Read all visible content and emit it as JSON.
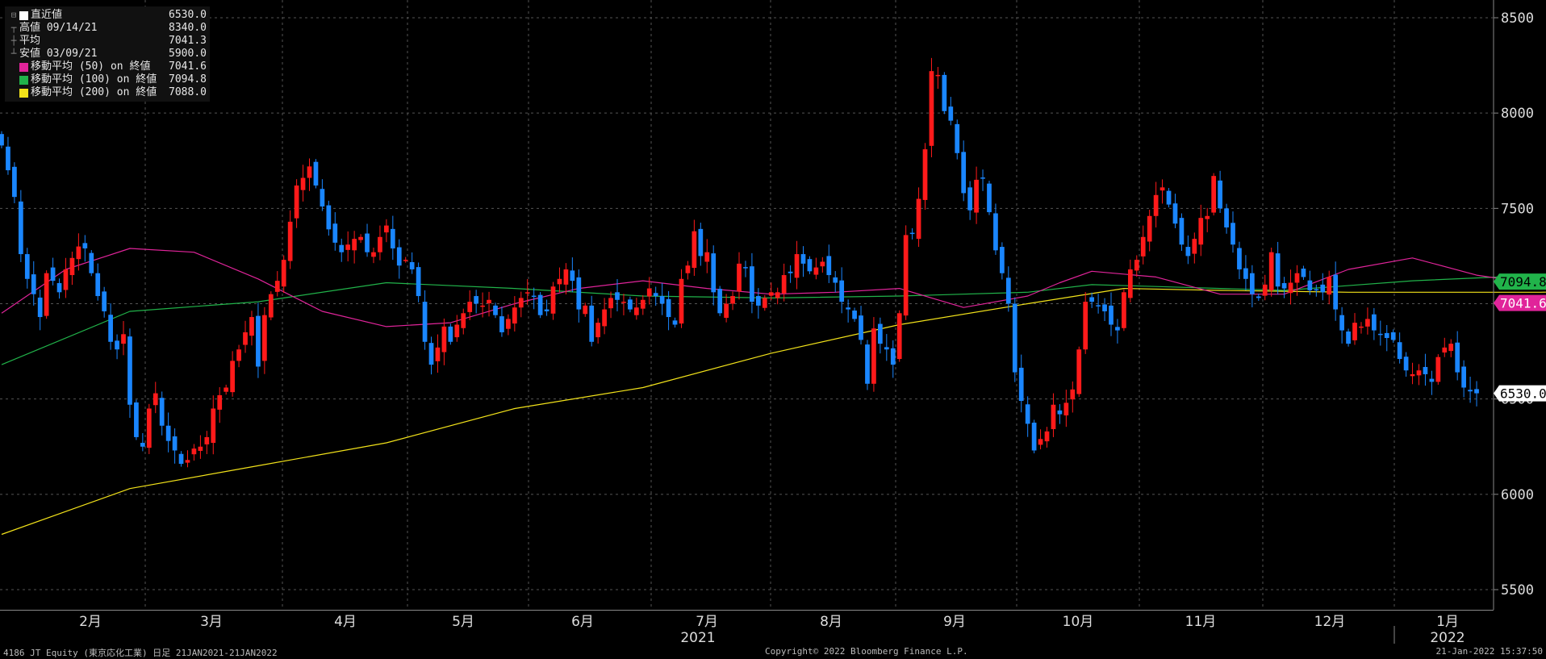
{
  "legend": {
    "items": [
      {
        "label": "直近値",
        "value": "6530.0",
        "swatch": "#ffffff",
        "glyph": "⊟"
      },
      {
        "label": "高値 09/14/21",
        "value": "8340.0",
        "swatch": "",
        "glyph": "┬"
      },
      {
        "label": "平均",
        "value": "7041.3",
        "swatch": "",
        "glyph": "┼"
      },
      {
        "label": "安値 03/09/21",
        "value": "5900.0",
        "swatch": "",
        "glyph": "┴"
      },
      {
        "label": "移動平均 (50) on 終値",
        "value": "7041.6",
        "swatch": "#e0249a",
        "glyph": ""
      },
      {
        "label": "移動平均 (100) on 終値",
        "value": "7094.8",
        "swatch": "#21b34a",
        "glyph": ""
      },
      {
        "label": "移動平均 (200) on 終値",
        "value": "7088.0",
        "swatch": "#f2e21a",
        "glyph": ""
      }
    ]
  },
  "footer": {
    "left": "4186 JT Equity (東京応化工業)  日足 21JAN2021-21JAN2022",
    "center": "Copyright© 2022 Bloomberg Finance L.P.",
    "right": "21-Jan-2022 15:37:50"
  },
  "chart_data": {
    "type": "candlestick",
    "ylim": [
      5400,
      8600
    ],
    "y_ticks": [
      "5500",
      "6000",
      "6500",
      "7000",
      "7500",
      "8000",
      "8500"
    ],
    "x_months": [
      "2月",
      "3月",
      "4月",
      "5月",
      "6月",
      "7月",
      "8月",
      "9月",
      "10月",
      "11月",
      "12月",
      "1月"
    ],
    "x_years": [
      "2021",
      "2022"
    ],
    "colors": {
      "up": "#ff1a1a",
      "down": "#1a86ff",
      "ma50": "#e0249a",
      "ma100": "#21b34a",
      "ma200": "#f2e21a"
    },
    "last_labels": [
      {
        "text": "7094.8",
        "value": 7094.8,
        "color": "#21b34a",
        "fg": "#000000"
      },
      {
        "text": "7041.6",
        "value": 7041.6,
        "color": "#e0249a",
        "fg": "#ffffff"
      },
      {
        "text": "6530.0",
        "value": 6530.0,
        "color": "#ffffff",
        "fg": "#000000"
      }
    ],
    "closes": [
      7830,
      7700,
      7560,
      7260,
      7130,
      7050,
      6930,
      7160,
      7120,
      7060,
      7180,
      7240,
      7300,
      7290,
      7160,
      7040,
      6960,
      6800,
      6760,
      6840,
      6470,
      6300,
      6250,
      6450,
      6530,
      6360,
      6280,
      6230,
      6160,
      6180,
      6240,
      6250,
      6300,
      6450,
      6520,
      6560,
      6700,
      6760,
      6850,
      6930,
      6670,
      6940,
      7050,
      7120,
      7230,
      7430,
      7620,
      7660,
      7720,
      7620,
      7510,
      7390,
      7320,
      7270,
      7310,
      7340,
      7350,
      7270,
      7270,
      7350,
      7410,
      7290,
      7200,
      7230,
      7180,
      7040,
      6800,
      6680,
      6770,
      6880,
      6800,
      6890,
      6950,
      7010,
      7000,
      6990,
      7020,
      6940,
      6850,
      6920,
      6980,
      7030,
      7060,
      7040,
      6940,
      6960,
      7090,
      7130,
      7180,
      7120,
      6970,
      6990,
      6800,
      6900,
      6970,
      7030,
      7020,
      7010,
      6970,
      6980,
      7020,
      7080,
      7040,
      7000,
      6930,
      6890,
      7130,
      7200,
      7380,
      7250,
      7270,
      7060,
      6950,
      7000,
      7040,
      7210,
      7190,
      7010,
      6990,
      7030,
      7060,
      7060,
      7150,
      7160,
      7260,
      7210,
      7170,
      7190,
      7220,
      7150,
      7110,
      7010,
      6970,
      6920,
      6810,
      6580,
      6870,
      6790,
      6760,
      6680,
      6950,
      7360,
      7370,
      7550,
      7810,
      8220,
      8200,
      8010,
      7960,
      7790,
      7580,
      7490,
      7650,
      7660,
      7480,
      7280,
      7160,
      7000,
      6640,
      6490,
      6370,
      6230,
      6290,
      6330,
      6470,
      6420,
      6480,
      6550,
      6760,
      7010,
      7010,
      6990,
      6960,
      6890,
      6860,
      7060,
      7180,
      7230,
      7350,
      7460,
      7570,
      7610,
      7520,
      7420,
      7310,
      7250,
      7340,
      7450,
      7460,
      7670,
      7500,
      7400,
      7310,
      7180,
      7130,
      7050,
      7030,
      7100,
      7270,
      7090,
      7080,
      7110,
      7160,
      7140,
      7070,
      7070,
      7060,
      7140,
      6970,
      6860,
      6790,
      6900,
      6880,
      6920,
      6860,
      6840,
      6820,
      6810,
      6710,
      6650,
      6630,
      6650,
      6630,
      6590,
      6720,
      6770,
      6790,
      6640,
      6560,
      6540,
      6530
    ],
    "ma50_nodes": [
      [
        0,
        6950
      ],
      [
        10,
        7180
      ],
      [
        20,
        7290
      ],
      [
        30,
        7270
      ],
      [
        40,
        7130
      ],
      [
        50,
        6960
      ],
      [
        60,
        6880
      ],
      [
        70,
        6900
      ],
      [
        80,
        7000
      ],
      [
        90,
        7080
      ],
      [
        100,
        7120
      ],
      [
        110,
        7080
      ],
      [
        120,
        7050
      ],
      [
        130,
        7060
      ],
      [
        140,
        7080
      ],
      [
        150,
        6980
      ],
      [
        160,
        7040
      ],
      [
        165,
        7110
      ],
      [
        170,
        7170
      ],
      [
        180,
        7140
      ],
      [
        190,
        7050
      ],
      [
        200,
        7050
      ],
      [
        210,
        7180
      ],
      [
        220,
        7240
      ],
      [
        230,
        7150
      ],
      [
        240,
        7100
      ],
      [
        250,
        7120
      ],
      [
        260,
        7180
      ],
      [
        270,
        7170
      ],
      [
        279,
        7110
      ],
      [
        285,
        7042
      ]
    ],
    "ma100_nodes": [
      [
        0,
        6680
      ],
      [
        20,
        6960
      ],
      [
        40,
        7010
      ],
      [
        60,
        7110
      ],
      [
        80,
        7080
      ],
      [
        100,
        7040
      ],
      [
        120,
        7030
      ],
      [
        140,
        7040
      ],
      [
        160,
        7060
      ],
      [
        170,
        7100
      ],
      [
        180,
        7090
      ],
      [
        200,
        7070
      ],
      [
        220,
        7120
      ],
      [
        240,
        7150
      ],
      [
        260,
        7130
      ],
      [
        285,
        7095
      ]
    ],
    "ma200_nodes": [
      [
        0,
        5790
      ],
      [
        20,
        6030
      ],
      [
        40,
        6150
      ],
      [
        60,
        6270
      ],
      [
        80,
        6450
      ],
      [
        100,
        6560
      ],
      [
        120,
        6740
      ],
      [
        140,
        6890
      ],
      [
        160,
        7000
      ],
      [
        175,
        7080
      ],
      [
        190,
        7070
      ],
      [
        210,
        7060
      ],
      [
        240,
        7060
      ],
      [
        260,
        7080
      ],
      [
        285,
        7088
      ]
    ]
  }
}
